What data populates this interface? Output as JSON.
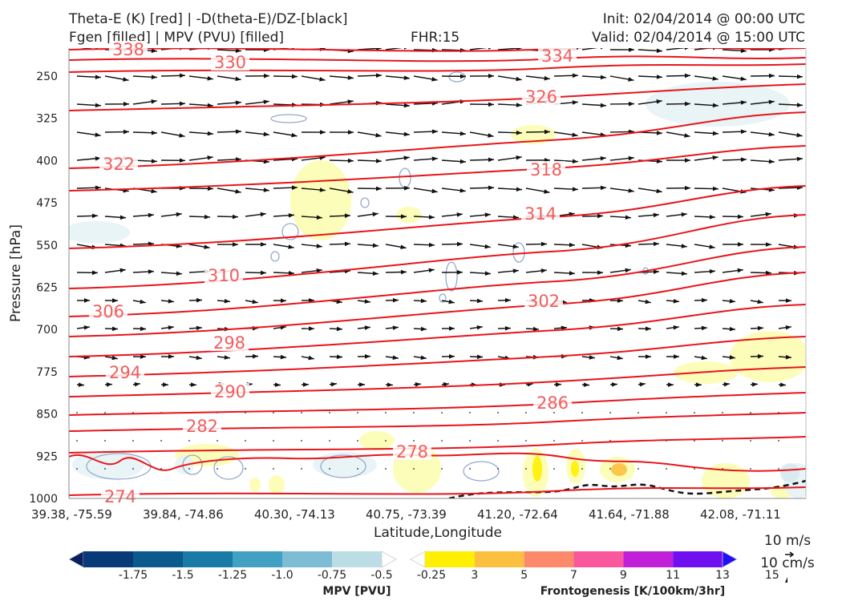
{
  "header": {
    "title_line1": "Theta-E (K) [red] | -D(theta-E)/DZ-[black]",
    "title_line2": "Fgen [filled] | MPV (PVU) [filled]",
    "fhr": "FHR:15",
    "init": "Init: 02/04/2014 @ 00:00 UTC",
    "valid": "Valid: 02/04/2014 @ 15:00 UTC"
  },
  "chart_data": {
    "type": "cross-section",
    "xlabel": "Latitude,Longitude",
    "ylabel": "Pressure [hPa]",
    "yscale": "pressure (inverted)",
    "ylim": [
      1000,
      200
    ],
    "x_ticks": [
      "39.38, -75.59",
      "39.84, -74.86",
      "40.30, -74.13",
      "40.75, -73.39",
      "41.20, -72.64",
      "41.64, -71.88",
      "42.08, -71.11"
    ],
    "y_ticks": [
      250,
      325,
      400,
      475,
      550,
      625,
      700,
      775,
      850,
      925,
      1000
    ],
    "theta_e_contours": {
      "color": "#e8141b",
      "label_color": "#f25c5c",
      "levels": [
        {
          "value": 338,
          "label": "338"
        },
        {
          "value": 334,
          "label": "334"
        },
        {
          "value": 330,
          "label": "330"
        },
        {
          "value": 326,
          "label": "326"
        },
        {
          "value": 322,
          "label": "322"
        },
        {
          "value": 318,
          "label": "318"
        },
        {
          "value": 314,
          "label": "314"
        },
        {
          "value": 310,
          "label": "310"
        },
        {
          "value": 306,
          "label": "306"
        },
        {
          "value": 302,
          "label": "302"
        },
        {
          "value": 298,
          "label": "298"
        },
        {
          "value": 294,
          "label": "294"
        },
        {
          "value": 290,
          "label": "290"
        },
        {
          "value": 286,
          "label": "286"
        },
        {
          "value": 282,
          "label": "282"
        },
        {
          "value": 278,
          "label": "278"
        },
        {
          "value": 274,
          "label": "274"
        }
      ]
    },
    "wind_scale": {
      "horizontal": "10 m/s",
      "vertical": "10 cm/s"
    },
    "mpv_colorbar": {
      "label": "MPV [PVU]",
      "ticks": [
        "-1.75",
        "-1.5",
        "-1.25",
        "-1.0",
        "-0.75",
        "-0.5",
        "-0.25"
      ],
      "colors": [
        "#08205e",
        "#083a78",
        "#0a5a8e",
        "#1a7aa6",
        "#42a0c2",
        "#7cbcd4",
        "#bddde6",
        "#ffffff"
      ]
    },
    "fgen_colorbar": {
      "label": "Frontogenesis [K/100km/3hr]",
      "ticks": [
        "3",
        "5",
        "7",
        "9",
        "11",
        "13",
        "15"
      ],
      "colors": [
        "#ffffff",
        "#ffef00",
        "#fcc040",
        "#fc8a6a",
        "#f9589c",
        "#c020d8",
        "#7010f0",
        "#2010f8"
      ]
    }
  }
}
